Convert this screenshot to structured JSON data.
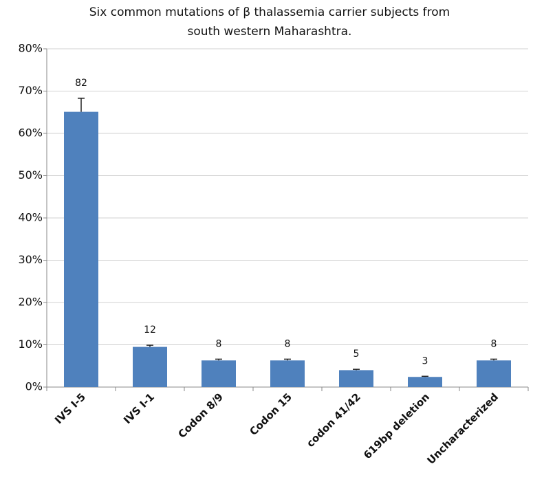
{
  "chart_data": {
    "type": "bar",
    "title": [
      "Six common mutations of β thalassemia carrier subjects from",
      "south western Maharashtra."
    ],
    "categories": [
      "IVS I-5",
      "IVS I-1",
      "Codon 8/9",
      "Codon 15",
      "codon 41/42",
      "619bp deletion",
      "Uncharacterized"
    ],
    "values": [
      65.1,
      9.5,
      6.3,
      6.3,
      4.0,
      2.4,
      6.3
    ],
    "errors": [
      3.2,
      0.4,
      0.3,
      0.3,
      0.2,
      0.15,
      0.3
    ],
    "data_labels": [
      82,
      12,
      8,
      8,
      5,
      3,
      8
    ],
    "color": "#4f81bd",
    "ylim": [
      0,
      80
    ],
    "yticks": [
      {
        "value": 0,
        "label": "0%"
      },
      {
        "value": 10,
        "label": "10%"
      },
      {
        "value": 20,
        "label": "20%"
      },
      {
        "value": 30,
        "label": "30%"
      },
      {
        "value": 40,
        "label": "40%"
      },
      {
        "value": 50,
        "label": "50%"
      },
      {
        "value": 60,
        "label": "60%"
      },
      {
        "value": 70,
        "label": "70%"
      },
      {
        "value": 80,
        "label": "80%"
      }
    ],
    "grid": true
  }
}
